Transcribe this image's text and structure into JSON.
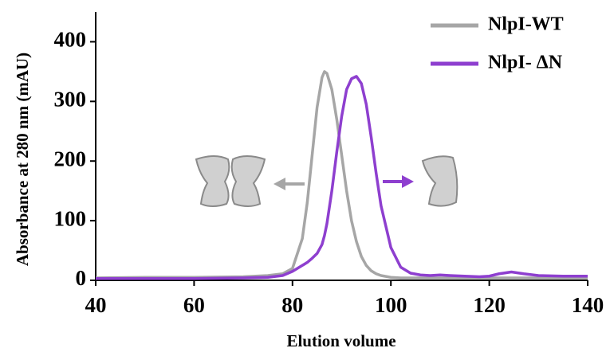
{
  "chart_data": {
    "type": "line",
    "x_label": "Elution volume",
    "y_label": "Absorbance at 280 nm (mAU)",
    "x": [
      40,
      50,
      60,
      70,
      75,
      78,
      80,
      82,
      83,
      84,
      85,
      86,
      86.5,
      87,
      88,
      89,
      90,
      91,
      92,
      93,
      94,
      95,
      96,
      97,
      98,
      100,
      102,
      104,
      106,
      108,
      110,
      112,
      115,
      118,
      120,
      122,
      124.5,
      127,
      130,
      135,
      140
    ],
    "series": [
      {
        "name": "NlpI-WT",
        "color": "#a6a6a6",
        "values": [
          4,
          5,
          5,
          6,
          8,
          11,
          20,
          70,
          130,
          210,
          290,
          340,
          350,
          347,
          320,
          270,
          210,
          150,
          100,
          65,
          40,
          25,
          16,
          11,
          8,
          5,
          4,
          4,
          4,
          4,
          4,
          4,
          4,
          4,
          4,
          4,
          4,
          4,
          4,
          4,
          4
        ]
      },
      {
        "name": "NlpI- ΔN",
        "color": "#8e3fcf",
        "values": [
          3,
          3,
          3,
          4,
          5,
          8,
          15,
          25,
          30,
          37,
          45,
          60,
          75,
          95,
          150,
          215,
          275,
          320,
          338,
          342,
          330,
          295,
          240,
          180,
          125,
          55,
          22,
          12,
          9,
          8,
          9,
          8,
          7,
          6,
          7,
          11,
          14,
          11,
          8,
          7,
          7
        ]
      }
    ],
    "xlim": [
      40,
      140
    ],
    "xticks": [
      40,
      60,
      80,
      100,
      120,
      140
    ],
    "ylim": [
      0,
      450
    ],
    "yticks": [
      0,
      100,
      200,
      300,
      400
    ],
    "grid": false,
    "legend": "upper right"
  }
}
